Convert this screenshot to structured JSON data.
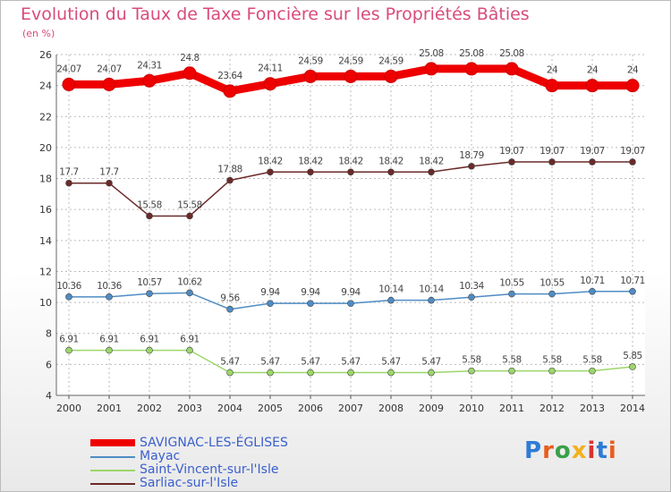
{
  "chart_data": {
    "type": "line",
    "title": "Evolution du Taux de Taxe Foncière sur les Propriétés Bâties",
    "subtitle": "(en %)",
    "categories": [
      "2000",
      "2001",
      "2002",
      "2003",
      "2004",
      "2005",
      "2006",
      "2007",
      "2008",
      "2009",
      "2010",
      "2011",
      "2012",
      "2013",
      "2014"
    ],
    "ylim": [
      4,
      26
    ],
    "yticks": [
      "4",
      "6",
      "8",
      "10",
      "12",
      "14",
      "16",
      "18",
      "20",
      "22",
      "24",
      "26"
    ],
    "grid": true,
    "legend_position": "bottom-left",
    "series": [
      {
        "name": "SAVIGNAC-LES-ÉGLISES",
        "color": "#ee0000",
        "values": [
          24.07,
          24.07,
          24.31,
          24.8,
          23.64,
          24.11,
          24.59,
          24.59,
          24.59,
          25.08,
          25.08,
          25.08,
          24,
          24,
          24
        ],
        "labels": [
          "24.07",
          "24.07",
          "24.31",
          "24.8",
          "23.64",
          "24.11",
          "24.59",
          "24.59",
          "24.59",
          "25.08",
          "25.08",
          "25.08",
          "24",
          "24",
          "24"
        ]
      },
      {
        "name": "Mayac",
        "color": "#4f8cc4",
        "values": [
          10.36,
          10.36,
          10.57,
          10.62,
          9.56,
          9.94,
          9.94,
          9.94,
          10.14,
          10.14,
          10.34,
          10.55,
          10.55,
          10.71,
          10.71
        ],
        "labels": [
          "10.36",
          "10.36",
          "10.57",
          "10.62",
          "9.56",
          "9.94",
          "9.94",
          "9.94",
          "10.14",
          "10.14",
          "10.34",
          "10.55",
          "10.55",
          "10.71",
          "10.71"
        ]
      },
      {
        "name": "Saint-Vincent-sur-l'Isle",
        "color": "#9cd66a",
        "values": [
          6.91,
          6.91,
          6.91,
          6.91,
          5.47,
          5.47,
          5.47,
          5.47,
          5.47,
          5.47,
          5.58,
          5.58,
          5.58,
          5.58,
          5.85
        ],
        "labels": [
          "6.91",
          "6.91",
          "6.91",
          "6.91",
          "5.47",
          "5.47",
          "5.47",
          "5.47",
          "5.47",
          "5.47",
          "5.58",
          "5.58",
          "5.58",
          "5.58",
          "5.85"
        ]
      },
      {
        "name": "Sarliac-sur-l'Isle",
        "color": "#6b2a2a",
        "values": [
          17.7,
          17.7,
          15.58,
          15.58,
          17.88,
          18.42,
          18.42,
          18.42,
          18.42,
          18.42,
          18.79,
          19.07,
          19.07,
          19.07,
          19.07
        ],
        "labels": [
          "17.7",
          "17.7",
          "15.58",
          "15.58",
          "17.88",
          "18.42",
          "18.42",
          "18.42",
          "18.42",
          "18.42",
          "18.79",
          "19.07",
          "19.07",
          "19.07",
          "19.07"
        ]
      }
    ]
  },
  "brand": [
    "P",
    "r",
    "o",
    "x",
    "i",
    "t",
    "i"
  ]
}
